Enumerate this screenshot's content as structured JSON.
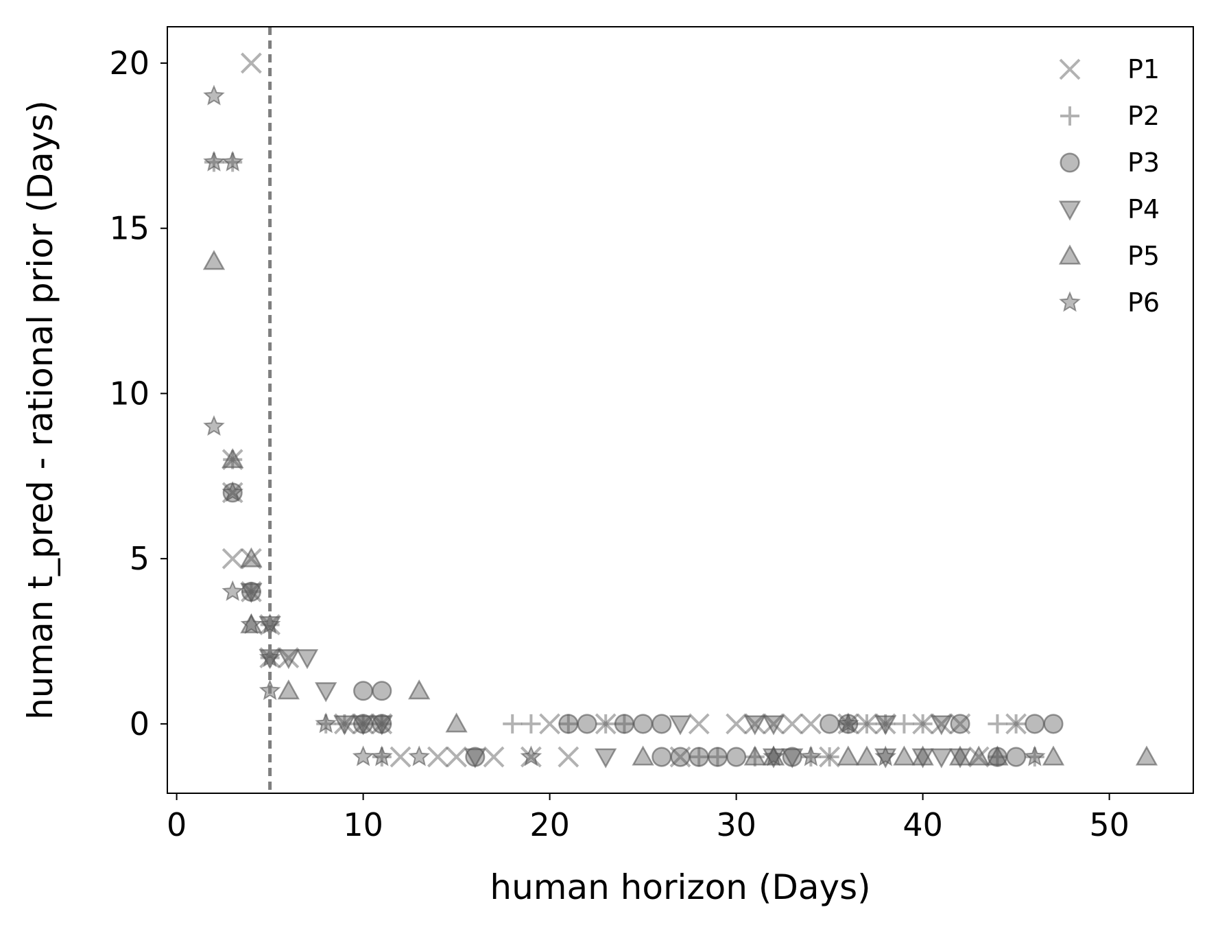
{
  "chart_data": {
    "type": "scatter",
    "title": "",
    "xlabel": "human horizon (Days)",
    "ylabel": "human t_pred - rational prior (Days)",
    "xlim": [
      -0.5,
      54.5
    ],
    "ylim": [
      -2.1,
      21.1
    ],
    "x_ticks": [
      0,
      10,
      20,
      30,
      40,
      50
    ],
    "y_ticks": [
      0,
      5,
      10,
      15,
      20
    ],
    "grid": false,
    "legend_position": "top-right",
    "reference_line": {
      "x": 5,
      "style": "dashed",
      "color": "#7f7f7f"
    },
    "series": [
      {
        "name": "P1",
        "marker": "x",
        "points": [
          [
            4,
            20
          ],
          [
            3,
            7
          ],
          [
            3,
            5
          ],
          [
            3,
            8
          ],
          [
            4,
            5
          ],
          [
            4,
            4
          ],
          [
            5,
            3
          ],
          [
            5,
            2
          ],
          [
            6,
            2
          ],
          [
            9,
            0
          ],
          [
            10,
            0
          ],
          [
            11,
            0
          ],
          [
            12,
            -1
          ],
          [
            14,
            -1
          ],
          [
            15,
            -1
          ],
          [
            17,
            -1
          ],
          [
            19,
            -1
          ],
          [
            20,
            0
          ],
          [
            21,
            -1
          ],
          [
            23,
            0
          ],
          [
            28,
            0
          ],
          [
            30,
            0
          ],
          [
            31,
            0
          ],
          [
            32,
            0
          ],
          [
            33,
            0
          ],
          [
            34,
            0
          ],
          [
            36,
            0
          ],
          [
            37,
            0
          ],
          [
            38,
            0
          ],
          [
            40,
            0
          ],
          [
            41,
            0
          ],
          [
            42,
            0
          ],
          [
            45,
            0
          ],
          [
            43,
            -1
          ],
          [
            35,
            -1
          ],
          [
            27,
            -1
          ]
        ]
      },
      {
        "name": "P2",
        "marker": "+",
        "points": [
          [
            2,
            17
          ],
          [
            3,
            17
          ],
          [
            3,
            8
          ],
          [
            4,
            4
          ],
          [
            5,
            3
          ],
          [
            5,
            2
          ],
          [
            8,
            0
          ],
          [
            9,
            0
          ],
          [
            10,
            0
          ],
          [
            11,
            0
          ],
          [
            11,
            -1
          ],
          [
            18,
            0
          ],
          [
            19,
            0
          ],
          [
            21,
            0
          ],
          [
            23,
            0
          ],
          [
            24,
            0
          ],
          [
            29,
            -1
          ],
          [
            34,
            -1
          ],
          [
            35,
            -1
          ],
          [
            36,
            0
          ],
          [
            37,
            0
          ],
          [
            38,
            0
          ],
          [
            39,
            0
          ],
          [
            40,
            0
          ],
          [
            44,
            0
          ],
          [
            45,
            0
          ],
          [
            44,
            -1
          ],
          [
            46,
            -1
          ],
          [
            28,
            -1
          ],
          [
            31,
            -1
          ]
        ]
      },
      {
        "name": "P3",
        "marker": "o",
        "points": [
          [
            3,
            7
          ],
          [
            4,
            4
          ],
          [
            10,
            1
          ],
          [
            11,
            1
          ],
          [
            10,
            0
          ],
          [
            11,
            0
          ],
          [
            16,
            -1
          ],
          [
            21,
            0
          ],
          [
            22,
            0
          ],
          [
            24,
            0
          ],
          [
            25,
            0
          ],
          [
            26,
            0
          ],
          [
            26,
            -1
          ],
          [
            27,
            -1
          ],
          [
            28,
            -1
          ],
          [
            29,
            -1
          ],
          [
            30,
            -1
          ],
          [
            33,
            -1
          ],
          [
            35,
            0
          ],
          [
            36,
            0
          ],
          [
            42,
            0
          ],
          [
            44,
            -1
          ],
          [
            45,
            -1
          ],
          [
            46,
            0
          ],
          [
            47,
            0
          ]
        ]
      },
      {
        "name": "P4",
        "marker": "v",
        "points": [
          [
            4,
            4
          ],
          [
            5,
            3
          ],
          [
            5,
            2
          ],
          [
            6,
            2
          ],
          [
            7,
            2
          ],
          [
            8,
            1
          ],
          [
            9,
            0
          ],
          [
            10,
            0
          ],
          [
            11,
            0
          ],
          [
            16,
            -1
          ],
          [
            23,
            -1
          ],
          [
            27,
            0
          ],
          [
            32,
            0
          ],
          [
            31,
            0
          ],
          [
            33,
            -1
          ],
          [
            38,
            -1
          ],
          [
            40,
            -1
          ],
          [
            41,
            -1
          ],
          [
            41,
            0
          ],
          [
            42,
            -1
          ],
          [
            32,
            -1
          ],
          [
            38,
            0
          ]
        ]
      },
      {
        "name": "P5",
        "marker": "^",
        "points": [
          [
            2,
            14
          ],
          [
            3,
            8
          ],
          [
            4,
            5
          ],
          [
            4,
            3
          ],
          [
            6,
            1
          ],
          [
            13,
            1
          ],
          [
            15,
            0
          ],
          [
            25,
            -1
          ],
          [
            31,
            -1
          ],
          [
            32,
            -1
          ],
          [
            36,
            -1
          ],
          [
            37,
            -1
          ],
          [
            39,
            -1
          ],
          [
            40,
            -1
          ],
          [
            42,
            -1
          ],
          [
            43,
            -1
          ],
          [
            44,
            -1
          ],
          [
            47,
            -1
          ],
          [
            52,
            -1
          ]
        ]
      },
      {
        "name": "P6",
        "marker": "*",
        "points": [
          [
            2,
            19
          ],
          [
            2,
            17
          ],
          [
            3,
            17
          ],
          [
            2,
            9
          ],
          [
            3,
            7
          ],
          [
            3,
            4
          ],
          [
            4,
            3
          ],
          [
            5,
            3
          ],
          [
            5,
            2
          ],
          [
            5,
            1
          ],
          [
            8,
            0
          ],
          [
            10,
            -1
          ],
          [
            11,
            -1
          ],
          [
            13,
            -1
          ],
          [
            19,
            -1
          ],
          [
            32,
            -1
          ],
          [
            34,
            -1
          ],
          [
            36,
            0
          ],
          [
            38,
            -1
          ],
          [
            46,
            -1
          ]
        ]
      }
    ],
    "legend": [
      "P1",
      "P2",
      "P3",
      "P4",
      "P5",
      "P6"
    ],
    "marker_color": "#555555"
  }
}
